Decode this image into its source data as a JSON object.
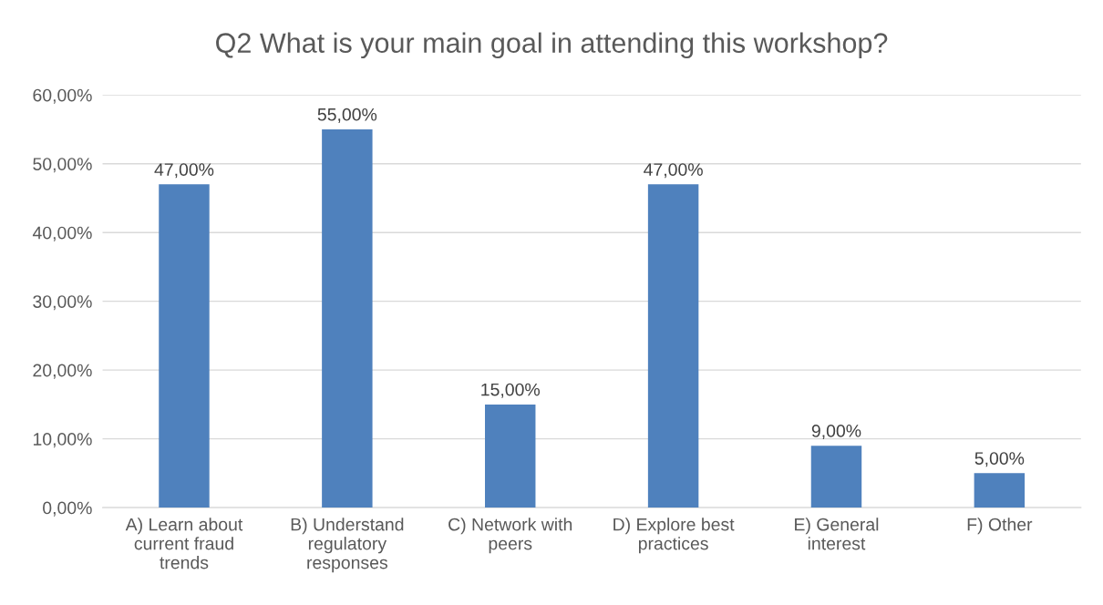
{
  "chart_data": {
    "type": "bar",
    "title": "Q2 What is your main goal in attending this workshop?",
    "categories": [
      "A) Learn about\ncurrent fraud\ntrends",
      "B) Understand\nregulatory\nresponses",
      "C) Network with\npeers",
      "D) Explore best\npractices",
      "E) General\ninterest",
      "F) Other"
    ],
    "values": [
      47,
      55,
      15,
      47,
      9,
      5
    ],
    "value_labels": [
      "47,00%",
      "55,00%",
      "15,00%",
      "47,00%",
      "9,00%",
      "5,00%"
    ],
    "color": "#4f81bd",
    "ylim": [
      0,
      60
    ],
    "yticks": [
      {
        "value": 0,
        "label": "0,00%"
      },
      {
        "value": 10,
        "label": "10,00%"
      },
      {
        "value": 20,
        "label": "20,00%"
      },
      {
        "value": 30,
        "label": "30,00%"
      },
      {
        "value": 40,
        "label": "40,00%"
      },
      {
        "value": 50,
        "label": "50,00%"
      },
      {
        "value": 60,
        "label": "60,00%"
      }
    ],
    "grid": "y",
    "legend": false
  }
}
